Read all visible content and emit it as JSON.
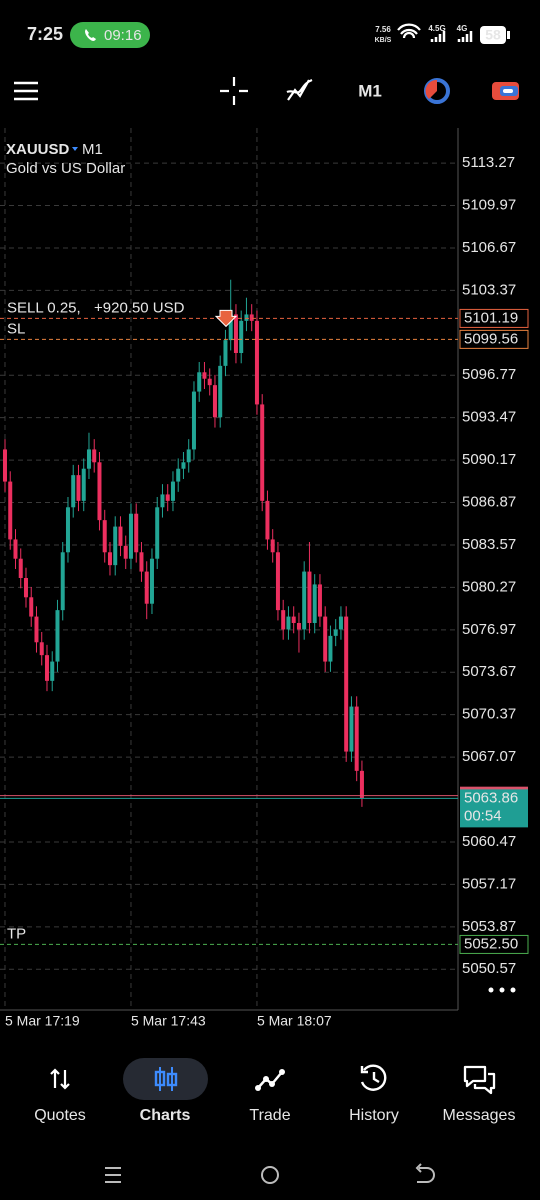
{
  "status_bar": {
    "time": "7:25",
    "call_timer": "09:16",
    "net_speed": "7.56",
    "net_unit": "KB/S",
    "network_1": "4.5G",
    "network_2": "4G",
    "battery": "58"
  },
  "toolbar": {
    "timeframe": "M1"
  },
  "chart_data": {
    "type": "candlestick",
    "symbol": "XAUUSD",
    "timeframe": "M1",
    "description": "Gold vs US Dollar",
    "up_color": "#22a595",
    "down_color": "#ec2f5f",
    "open": [
      5091.0,
      5088.5,
      5084.0,
      5082.5,
      5081.0,
      5079.5,
      5078.0,
      5076.0,
      5075.0,
      5073.0,
      5074.5,
      5078.5,
      5083.0,
      5086.5,
      5089.0,
      5087.0,
      5089.5,
      5091.0,
      5090.0,
      5085.5,
      5083.0,
      5082.0,
      5085.0,
      5083.5,
      5082.5,
      5086.0,
      5083.0,
      5081.5,
      5079.0,
      5082.5,
      5086.5,
      5087.5,
      5087.0,
      5088.5,
      5089.5,
      5090.0,
      5091.0,
      5095.5,
      5097.0,
      5096.5,
      5096.0,
      5093.5,
      5097.5,
      5099.5,
      5101.5,
      5098.5,
      5101.0,
      5101.5,
      5101.0,
      5094.5,
      5087.0,
      5084.0,
      5083.0,
      5078.5,
      5077.0,
      5078.0,
      5077.5,
      5077.0,
      5081.5,
      5077.5,
      5080.5,
      5078.0,
      5074.5,
      5076.5,
      5077.0,
      5078.0,
      5067.5,
      5071.0,
      5066.0
    ],
    "high": [
      5091.8,
      5089.3,
      5084.8,
      5083.3,
      5081.8,
      5080.3,
      5078.8,
      5076.8,
      5075.8,
      5075.3,
      5079.3,
      5083.8,
      5087.3,
      5089.8,
      5089.8,
      5090.3,
      5092.3,
      5091.8,
      5090.8,
      5086.3,
      5083.8,
      5085.8,
      5085.8,
      5084.3,
      5086.8,
      5086.8,
      5083.8,
      5082.3,
      5083.3,
      5087.3,
      5088.3,
      5088.3,
      5089.3,
      5090.3,
      5090.8,
      5091.8,
      5096.3,
      5097.8,
      5097.8,
      5097.3,
      5096.8,
      5098.3,
      5100.3,
      5104.2,
      5102.3,
      5101.8,
      5102.8,
      5102.3,
      5101.8,
      5095.3,
      5087.8,
      5084.8,
      5083.8,
      5079.3,
      5078.8,
      5078.8,
      5078.3,
      5082.3,
      5083.8,
      5081.3,
      5081.3,
      5078.8,
      5077.3,
      5077.8,
      5078.8,
      5078.8,
      5071.8,
      5071.8,
      5066.8
    ],
    "low": [
      5087.7,
      5083.2,
      5081.7,
      5080.2,
      5078.7,
      5077.2,
      5075.2,
      5074.2,
      5072.2,
      5072.2,
      5073.7,
      5077.7,
      5082.2,
      5085.7,
      5086.2,
      5086.2,
      5088.7,
      5089.2,
      5084.7,
      5082.2,
      5081.2,
      5081.2,
      5082.7,
      5081.7,
      5081.7,
      5082.2,
      5080.7,
      5077.8,
      5078.2,
      5081.7,
      5085.7,
      5086.2,
      5086.2,
      5087.7,
      5088.7,
      5089.2,
      5090.2,
      5094.7,
      5095.7,
      5095.2,
      5092.7,
      5092.7,
      5096.7,
      5098.7,
      5097.7,
      5097.7,
      5100.2,
      5100.2,
      5093.7,
      5086.2,
      5083.2,
      5082.2,
      5077.7,
      5076.2,
      5076.2,
      5076.7,
      5075.2,
      5076.2,
      5076.7,
      5076.7,
      5077.2,
      5073.7,
      5073.7,
      5075.7,
      5076.2,
      5066.7,
      5066.7,
      5065.2,
      5063.2
    ],
    "close": [
      5088.5,
      5084.0,
      5082.5,
      5081.0,
      5079.5,
      5078.0,
      5076.0,
      5075.0,
      5073.0,
      5074.5,
      5078.5,
      5083.0,
      5086.5,
      5089.0,
      5087.0,
      5089.5,
      5091.0,
      5090.0,
      5085.5,
      5083.0,
      5082.0,
      5085.0,
      5083.5,
      5082.5,
      5086.0,
      5083.0,
      5081.5,
      5079.0,
      5082.5,
      5086.5,
      5087.5,
      5087.0,
      5088.5,
      5089.5,
      5090.0,
      5091.0,
      5095.5,
      5097.0,
      5096.5,
      5096.0,
      5093.5,
      5097.5,
      5099.5,
      5101.5,
      5098.5,
      5101.0,
      5101.5,
      5101.0,
      5094.5,
      5087.0,
      5084.0,
      5083.0,
      5078.5,
      5077.0,
      5078.0,
      5077.5,
      5077.0,
      5081.5,
      5077.5,
      5080.5,
      5078.0,
      5074.5,
      5076.5,
      5077.0,
      5078.0,
      5067.5,
      5071.0,
      5066.0,
      5063.86
    ],
    "xlim": [
      -0.95,
      86.3
    ],
    "xticks": [
      {
        "value": 0,
        "label": "5 Mar 17:19"
      },
      {
        "value": 24,
        "label": "5 Mar 17:43"
      },
      {
        "value": 48,
        "label": "5 Mar 18:07"
      }
    ],
    "ylim": [
      5047.4,
      5116.0
    ],
    "yticks": [
      5113.27,
      5109.97,
      5106.67,
      5103.37,
      5096.77,
      5093.47,
      5090.17,
      5086.87,
      5083.57,
      5080.27,
      5076.97,
      5073.67,
      5070.37,
      5067.07,
      5060.47,
      5057.17,
      5053.87,
      5050.57
    ],
    "grid": true,
    "levels": [
      {
        "name": "SELL 0.25,",
        "profit": "+920.50 USD",
        "price": 5101.19,
        "color": "#e8633f"
      },
      {
        "name": "SL",
        "price": 5099.56,
        "color": "#e8823f"
      },
      {
        "name": "TP",
        "price": {
          "value": 5052.5,
          "label": "5052.50"
        },
        "color": "#4caf50"
      }
    ],
    "ask": 5064.07,
    "ask_color": "#d9536b",
    "bid": 5063.86,
    "bid_color": "#1f9e94",
    "countdown": "00:54"
  },
  "bottom_nav": {
    "items": [
      "Quotes",
      "Charts",
      "Trade",
      "History",
      "Messages"
    ],
    "active": 1
  }
}
